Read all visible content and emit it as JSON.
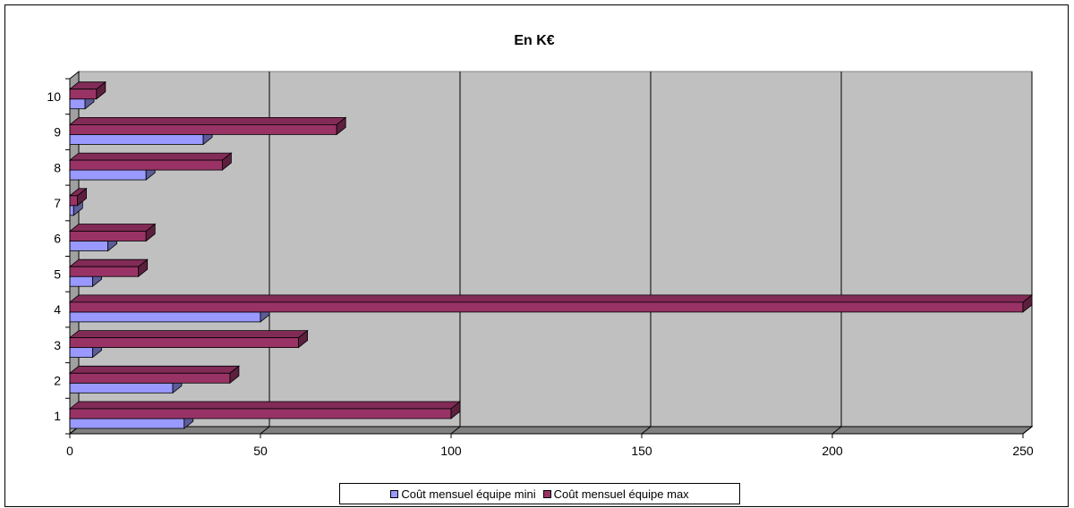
{
  "chart_data": {
    "type": "bar",
    "orientation": "horizontal",
    "style": "3d",
    "title": "En K€",
    "xlabel": "",
    "ylabel": "",
    "categories": [
      "1",
      "2",
      "3",
      "4",
      "5",
      "6",
      "7",
      "8",
      "9",
      "10"
    ],
    "xlim": [
      0,
      250
    ],
    "xticks": [
      0,
      50,
      100,
      150,
      200,
      250
    ],
    "grid": true,
    "legend_position": "bottom",
    "series": [
      {
        "name": "Coût mensuel équipe mini",
        "color": "#9999ff",
        "values": [
          30,
          27,
          6,
          50,
          6,
          10,
          1,
          20,
          35,
          4
        ]
      },
      {
        "name": "Coût mensuel équipe max",
        "color": "#993366",
        "values": [
          100,
          42,
          60,
          250,
          18,
          20,
          2,
          40,
          70,
          7
        ]
      }
    ]
  }
}
